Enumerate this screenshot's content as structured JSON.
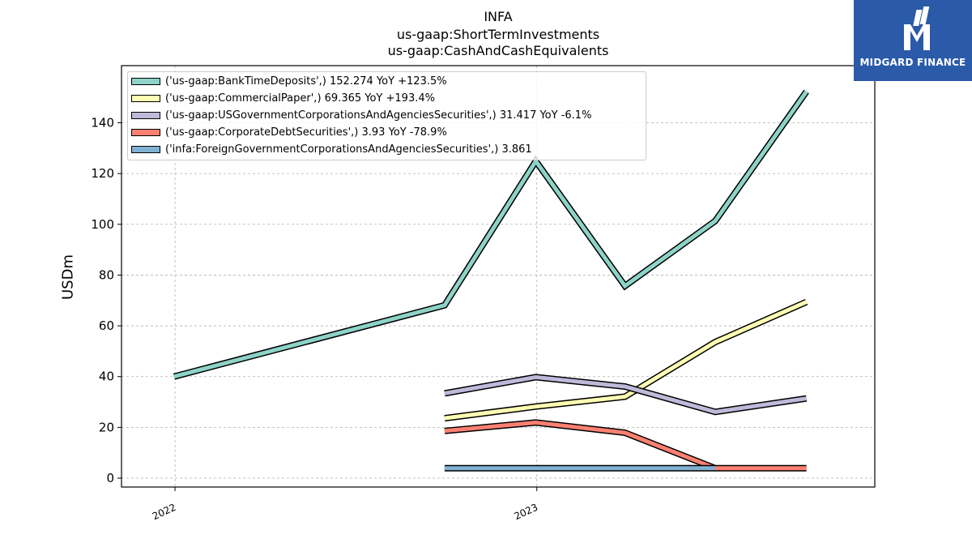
{
  "titles": [
    "INFA",
    "us-gaap:ShortTermInvestments",
    "us-gaap:CashAndCashEquivalents"
  ],
  "logo": {
    "text": "MIDGARD FINANCE",
    "color": "#2a5aa8"
  },
  "chart_data": {
    "type": "line",
    "title": "INFA\nus-gaap:ShortTermInvestments\nus-gaap:CashAndCashEquivalents",
    "ylabel": "USDm",
    "xlabel": "",
    "ylim": [
      -3.5,
      162.5
    ],
    "xlim": [
      "2021-11-08",
      "2023-12-08"
    ],
    "yticks": [
      0,
      20,
      40,
      60,
      80,
      100,
      120,
      140
    ],
    "xticks": [
      {
        "date": "2022-01-01",
        "label": "2022"
      },
      {
        "date": "2023-01-01",
        "label": "2023"
      }
    ],
    "grid": true,
    "legend_position": "top-left",
    "series": [
      {
        "name": "('us-gaap:BankTimeDeposits',) 152.274 YoY +123.5%",
        "color": "#8dd3c7",
        "x": [
          "2021-12-31",
          "2022-09-30",
          "2022-12-31",
          "2023-03-31",
          "2023-06-30",
          "2023-09-30"
        ],
        "values": [
          40,
          68.1,
          124.9,
          75.7,
          101.3,
          152.3
        ]
      },
      {
        "name": "('us-gaap:CommercialPaper',) 69.365 YoY +193.4%",
        "color": "#ffffb3",
        "x": [
          "2022-09-30",
          "2022-12-31",
          "2023-03-31",
          "2023-06-30",
          "2023-09-30"
        ],
        "values": [
          23.6,
          28.2,
          32.1,
          53.6,
          69.4
        ]
      },
      {
        "name": "('us-gaap:USGovernmentCorporationsAndAgenciesSecurities',) 31.417 YoY -6.1%",
        "color": "#bebada",
        "x": [
          "2022-09-30",
          "2022-12-31",
          "2023-03-31",
          "2023-06-30",
          "2023-09-30"
        ],
        "values": [
          33.4,
          39.8,
          36.1,
          26.1,
          31.4
        ]
      },
      {
        "name": "('us-gaap:CorporateDebtSecurities',) 3.93 YoY -78.9%",
        "color": "#fb8072",
        "x": [
          "2022-09-30",
          "2022-12-31",
          "2023-03-31",
          "2023-06-30",
          "2023-09-30"
        ],
        "values": [
          18.6,
          21.9,
          17.9,
          3.9,
          3.9
        ]
      },
      {
        "name": "('infa:ForeignGovernmentCorporationsAndAgenciesSecurities',) 3.861",
        "color": "#80b1d3",
        "x": [
          "2022-09-30",
          "2022-12-31",
          "2023-03-31",
          "2023-06-30"
        ],
        "values": [
          3.9,
          3.9,
          3.9,
          3.9
        ]
      }
    ]
  }
}
